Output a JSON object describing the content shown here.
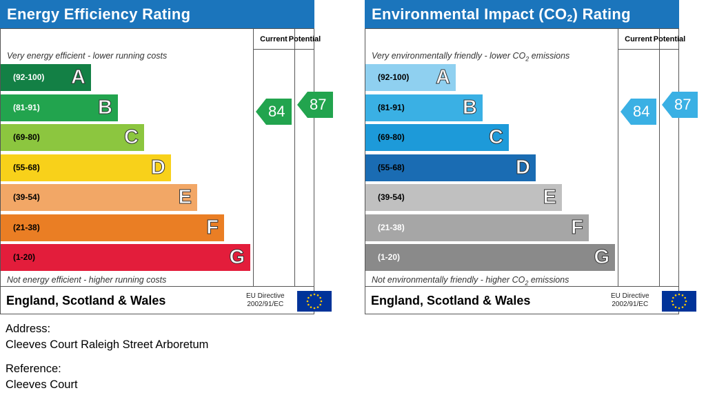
{
  "chart_data": [
    {
      "type": "bar",
      "title": "Energy Efficiency Rating",
      "top_note": "Very energy efficient - lower running costs",
      "bottom_note": "Not energy efficient - higher running costs",
      "columns": [
        "Current",
        "Potential"
      ],
      "bands": [
        {
          "range": "(92-100)",
          "letter": "A",
          "color": "#138045"
        },
        {
          "range": "(81-91)",
          "letter": "B",
          "color": "#22a44e"
        },
        {
          "range": "(69-80)",
          "letter": "C",
          "color": "#8cc63f"
        },
        {
          "range": "(55-68)",
          "letter": "D",
          "color": "#f8d11a"
        },
        {
          "range": "(39-54)",
          "letter": "E",
          "color": "#f2a766"
        },
        {
          "range": "(21-38)",
          "letter": "F",
          "color": "#ea7e24"
        },
        {
          "range": "(1-20)",
          "letter": "G",
          "color": "#e31d3b"
        }
      ],
      "current": 84,
      "potential": 87,
      "current_color": "#22a44e",
      "potential_color": "#22a44e",
      "footer_country": "England, Scotland & Wales",
      "footer_directive_line1": "EU Directive",
      "footer_directive_line2": "2002/91/EC"
    },
    {
      "type": "bar",
      "title_parts": [
        "Environmental Impact (CO",
        "2",
        ") Rating"
      ],
      "top_note_parts": [
        "Very environmentally friendly - lower CO",
        "2",
        " emissions"
      ],
      "bottom_note_parts": [
        "Not environmentally friendly - higher CO",
        "2",
        " emissions"
      ],
      "columns": [
        "Current",
        "Potential"
      ],
      "bands": [
        {
          "range": "(92-100)",
          "letter": "A",
          "color": "#8fd0f0"
        },
        {
          "range": "(81-91)",
          "letter": "B",
          "color": "#3ab0e4"
        },
        {
          "range": "(69-80)",
          "letter": "C",
          "color": "#1d9ad9"
        },
        {
          "range": "(55-68)",
          "letter": "D",
          "color": "#1a6cb3"
        },
        {
          "range": "(39-54)",
          "letter": "E",
          "color": "#c0c0c0"
        },
        {
          "range": "(21-38)",
          "letter": "F",
          "color": "#a6a6a6"
        },
        {
          "range": "(1-20)",
          "letter": "G",
          "color": "#8a8a8a"
        }
      ],
      "current": 84,
      "potential": 87,
      "current_color": "#3ab0e4",
      "potential_color": "#3ab0e4",
      "footer_country": "England, Scotland & Wales",
      "footer_directive_line1": "EU Directive",
      "footer_directive_line2": "2002/91/EC"
    }
  ],
  "address_label": "Address:",
  "address_value": "Cleeves Court Raleigh Street Arboretum",
  "reference_label": "Reference:",
  "reference_value": "Cleeves Court",
  "eu_flag_icon": "eu-flag-icon"
}
